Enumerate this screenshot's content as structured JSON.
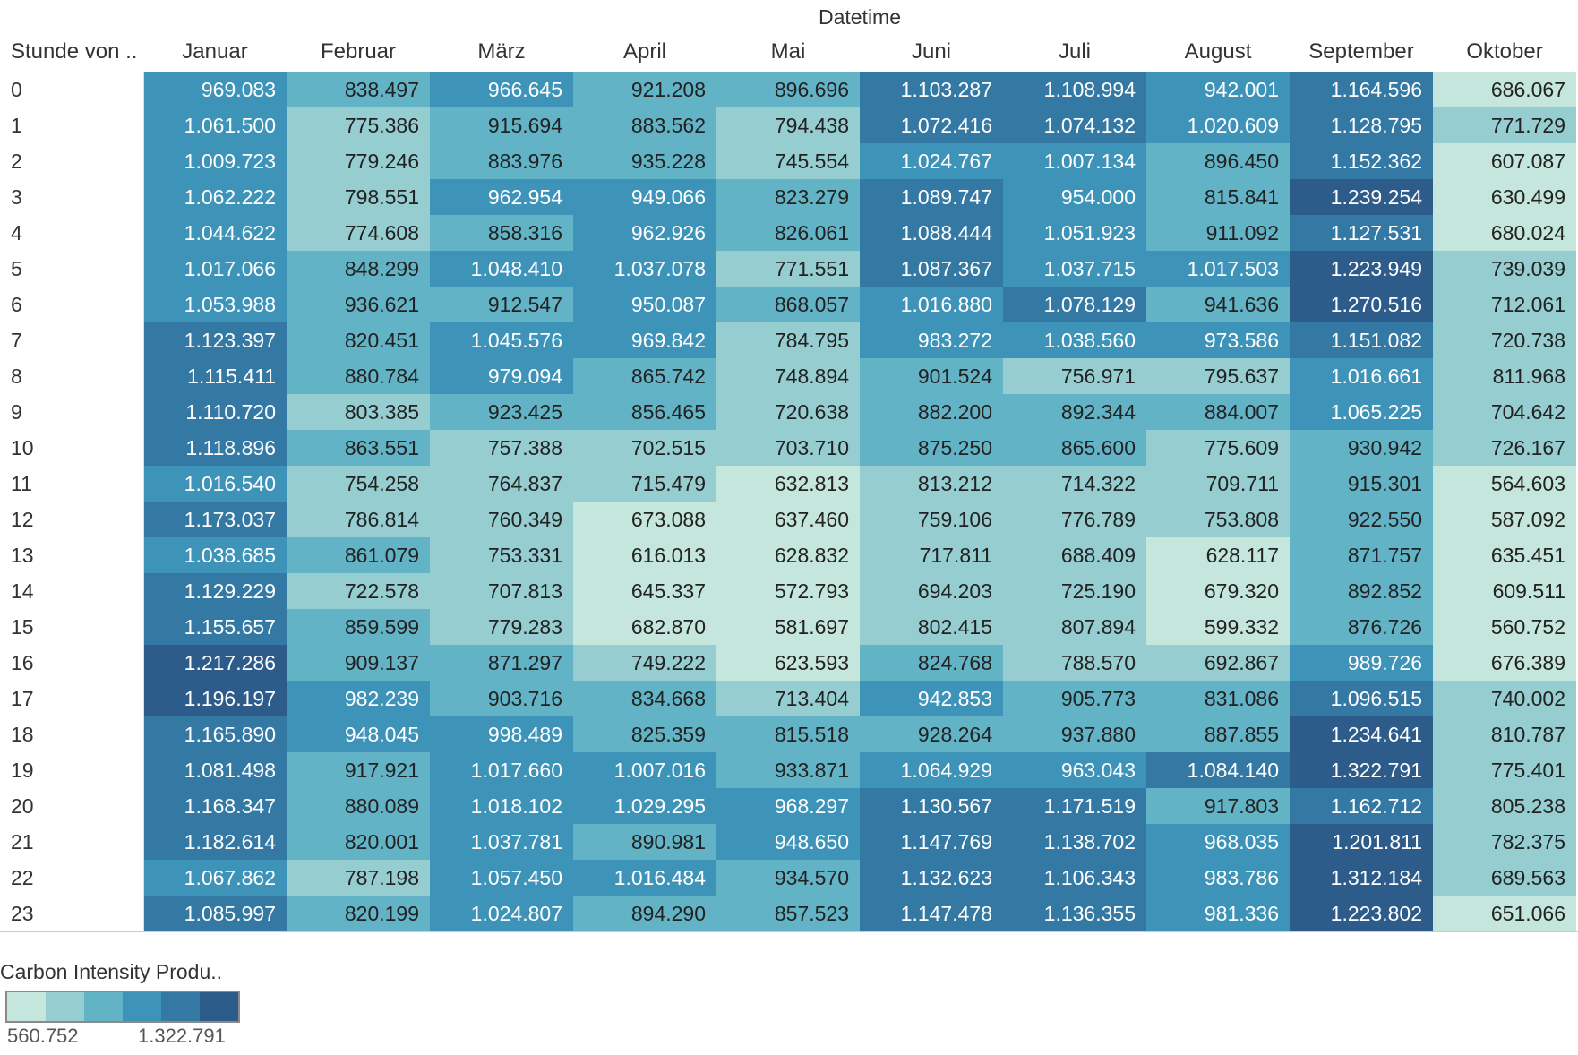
{
  "chart_data": {
    "type": "heatmap",
    "column_group_title": "Datetime",
    "row_header_title": "Stunde von ..",
    "columns": [
      "Januar",
      "Februar",
      "März",
      "April",
      "Mai",
      "Juni",
      "Juli",
      "August",
      "September",
      "Oktober"
    ],
    "rows": [
      "0",
      "1",
      "2",
      "3",
      "4",
      "5",
      "6",
      "7",
      "8",
      "9",
      "10",
      "11",
      "12",
      "13",
      "14",
      "15",
      "16",
      "17",
      "18",
      "19",
      "20",
      "21",
      "22",
      "23"
    ],
    "values": [
      [
        "969.083",
        "838.497",
        "966.645",
        "921.208",
        "896.696",
        "1.103.287",
        "1.108.994",
        "942.001",
        "1.164.596",
        "686.067"
      ],
      [
        "1.061.500",
        "775.386",
        "915.694",
        "883.562",
        "794.438",
        "1.072.416",
        "1.074.132",
        "1.020.609",
        "1.128.795",
        "771.729"
      ],
      [
        "1.009.723",
        "779.246",
        "883.976",
        "935.228",
        "745.554",
        "1.024.767",
        "1.007.134",
        "896.450",
        "1.152.362",
        "607.087"
      ],
      [
        "1.062.222",
        "798.551",
        "962.954",
        "949.066",
        "823.279",
        "1.089.747",
        "954.000",
        "815.841",
        "1.239.254",
        "630.499"
      ],
      [
        "1.044.622",
        "774.608",
        "858.316",
        "962.926",
        "826.061",
        "1.088.444",
        "1.051.923",
        "911.092",
        "1.127.531",
        "680.024"
      ],
      [
        "1.017.066",
        "848.299",
        "1.048.410",
        "1.037.078",
        "771.551",
        "1.087.367",
        "1.037.715",
        "1.017.503",
        "1.223.949",
        "739.039"
      ],
      [
        "1.053.988",
        "936.621",
        "912.547",
        "950.087",
        "868.057",
        "1.016.880",
        "1.078.129",
        "941.636",
        "1.270.516",
        "712.061"
      ],
      [
        "1.123.397",
        "820.451",
        "1.045.576",
        "969.842",
        "784.795",
        "983.272",
        "1.038.560",
        "973.586",
        "1.151.082",
        "720.738"
      ],
      [
        "1.115.411",
        "880.784",
        "979.094",
        "865.742",
        "748.894",
        "901.524",
        "756.971",
        "795.637",
        "1.016.661",
        "811.968"
      ],
      [
        "1.110.720",
        "803.385",
        "923.425",
        "856.465",
        "720.638",
        "882.200",
        "892.344",
        "884.007",
        "1.065.225",
        "704.642"
      ],
      [
        "1.118.896",
        "863.551",
        "757.388",
        "702.515",
        "703.710",
        "875.250",
        "865.600",
        "775.609",
        "930.942",
        "726.167"
      ],
      [
        "1.016.540",
        "754.258",
        "764.837",
        "715.479",
        "632.813",
        "813.212",
        "714.322",
        "709.711",
        "915.301",
        "564.603"
      ],
      [
        "1.173.037",
        "786.814",
        "760.349",
        "673.088",
        "637.460",
        "759.106",
        "776.789",
        "753.808",
        "922.550",
        "587.092"
      ],
      [
        "1.038.685",
        "861.079",
        "753.331",
        "616.013",
        "628.832",
        "717.811",
        "688.409",
        "628.117",
        "871.757",
        "635.451"
      ],
      [
        "1.129.229",
        "722.578",
        "707.813",
        "645.337",
        "572.793",
        "694.203",
        "725.190",
        "679.320",
        "892.852",
        "609.511"
      ],
      [
        "1.155.657",
        "859.599",
        "779.283",
        "682.870",
        "581.697",
        "802.415",
        "807.894",
        "599.332",
        "876.726",
        "560.752"
      ],
      [
        "1.217.286",
        "909.137",
        "871.297",
        "749.222",
        "623.593",
        "824.768",
        "788.570",
        "692.867",
        "989.726",
        "676.389"
      ],
      [
        "1.196.197",
        "982.239",
        "903.716",
        "834.668",
        "713.404",
        "942.853",
        "905.773",
        "831.086",
        "1.096.515",
        "740.002"
      ],
      [
        "1.165.890",
        "948.045",
        "998.489",
        "825.359",
        "815.518",
        "928.264",
        "937.880",
        "887.855",
        "1.234.641",
        "810.787"
      ],
      [
        "1.081.498",
        "917.921",
        "1.017.660",
        "1.007.016",
        "933.871",
        "1.064.929",
        "963.043",
        "1.084.140",
        "1.322.791",
        "775.401"
      ],
      [
        "1.168.347",
        "880.089",
        "1.018.102",
        "1.029.295",
        "968.297",
        "1.130.567",
        "1.171.519",
        "917.803",
        "1.162.712",
        "805.238"
      ],
      [
        "1.182.614",
        "820.001",
        "1.037.781",
        "890.981",
        "948.650",
        "1.147.769",
        "1.138.702",
        "968.035",
        "1.201.811",
        "782.375"
      ],
      [
        "1.067.862",
        "787.198",
        "1.057.450",
        "1.016.484",
        "934.570",
        "1.132.623",
        "1.106.343",
        "983.786",
        "1.312.184",
        "689.563"
      ],
      [
        "1.085.997",
        "820.199",
        "1.024.807",
        "894.290",
        "857.523",
        "1.147.478",
        "1.136.355",
        "981.336",
        "1.223.802",
        "651.066"
      ]
    ],
    "legend": {
      "title": "Carbon Intensity Produ..",
      "min_label": "560.752",
      "max_label": "1.322.791",
      "colors": [
        "#c5e6dc",
        "#95cdd0",
        "#63b3c6",
        "#3e93b9",
        "#3478a4",
        "#2d5b8a"
      ]
    }
  }
}
